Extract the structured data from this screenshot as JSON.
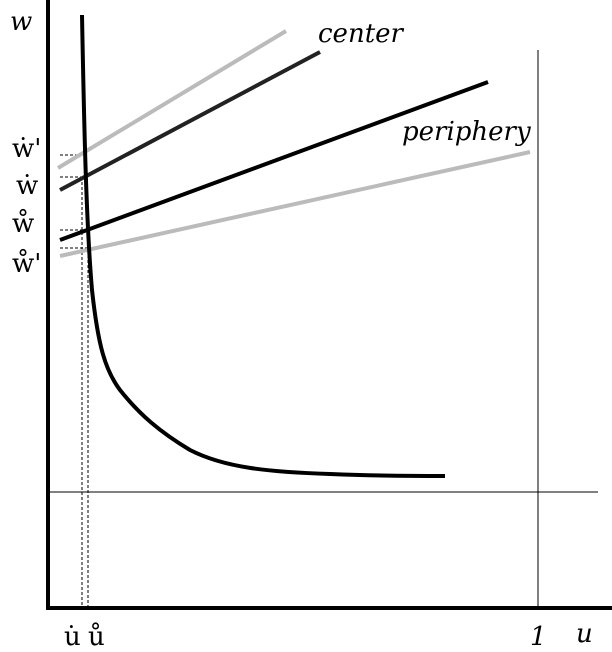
{
  "axes": {
    "y_label": "w",
    "x_label": "u",
    "x_one": "1"
  },
  "lines": {
    "center": "center",
    "periphery": "periphery"
  },
  "y_markers": [
    "ẇ'",
    "ẇ",
    "ẘ",
    "ẘ'"
  ],
  "x_markers": [
    "u̇",
    "ů"
  ]
}
